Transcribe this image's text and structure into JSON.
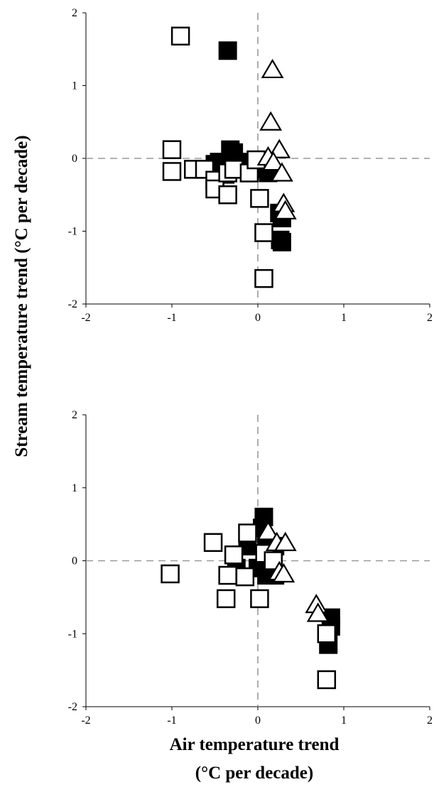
{
  "labels": {
    "y_title": "Stream temperature trend (°C per decade)",
    "x_title_line1": "Air temperature trend",
    "x_title_line2": "(°C per decade)"
  },
  "chart_data": [
    {
      "type": "scatter",
      "xlabel": "",
      "ylabel": "",
      "xlim": [
        -2,
        2
      ],
      "ylim": [
        -2,
        2
      ],
      "xticks": [
        "-2",
        "-1",
        "0",
        "1",
        "2"
      ],
      "yticks": [
        "-2",
        "-1",
        "0",
        "1",
        "2"
      ],
      "grid": false,
      "reference_lines": {
        "x": 0,
        "y": 0,
        "style": "dashed",
        "color": "#999999"
      },
      "series": [
        {
          "marker": "filled-square",
          "color": "#000000",
          "points": [
            [
              -0.35,
              1.48
            ],
            [
              -0.32,
              0.12
            ],
            [
              -0.28,
              0.08
            ],
            [
              -0.5,
              -0.08
            ],
            [
              -0.45,
              -0.05
            ],
            [
              -0.38,
              -0.22
            ],
            [
              -0.3,
              -0.12
            ],
            [
              -0.1,
              -0.05
            ],
            [
              -0.05,
              -0.12
            ],
            [
              0.1,
              -0.15
            ],
            [
              0.12,
              -0.2
            ],
            [
              0.25,
              -0.75
            ],
            [
              0.28,
              -0.82
            ],
            [
              0.26,
              -1.12
            ],
            [
              0.28,
              -1.15
            ]
          ]
        },
        {
          "marker": "open-square",
          "color": "#000000",
          "points": [
            [
              -0.9,
              1.68
            ],
            [
              -1.0,
              0.12
            ],
            [
              -1.0,
              -0.18
            ],
            [
              -0.75,
              -0.15
            ],
            [
              -0.62,
              -0.15
            ],
            [
              -0.5,
              -0.3
            ],
            [
              -0.5,
              -0.42
            ],
            [
              -0.35,
              -0.2
            ],
            [
              -0.35,
              -0.5
            ],
            [
              -0.28,
              -0.15
            ],
            [
              -0.1,
              -0.2
            ],
            [
              -0.02,
              -0.02
            ],
            [
              0.02,
              -0.55
            ],
            [
              0.07,
              -1.02
            ],
            [
              0.07,
              -1.65
            ]
          ]
        },
        {
          "marker": "open-triangle",
          "color": "#000000",
          "points": [
            [
              0.17,
              1.22
            ],
            [
              0.15,
              0.5
            ],
            [
              0.25,
              0.12
            ],
            [
              0.12,
              0.02
            ],
            [
              0.18,
              -0.05
            ],
            [
              0.28,
              -0.2
            ],
            [
              0.3,
              -0.62
            ],
            [
              0.32,
              -0.72
            ]
          ]
        }
      ]
    },
    {
      "type": "scatter",
      "xlabel": "",
      "ylabel": "",
      "xlim": [
        -2,
        2
      ],
      "ylim": [
        -2,
        2
      ],
      "xticks": [
        "-2",
        "-1",
        "0",
        "1",
        "2"
      ],
      "yticks": [
        "-2",
        "-1",
        "0",
        "1",
        "2"
      ],
      "grid": false,
      "reference_lines": {
        "x": 0,
        "y": 0,
        "style": "dashed",
        "color": "#999999"
      },
      "series": [
        {
          "marker": "filled-square",
          "color": "#000000",
          "points": [
            [
              0.07,
              0.6
            ],
            [
              0.05,
              0.45
            ],
            [
              0.1,
              0.25
            ],
            [
              -0.12,
              0.2
            ],
            [
              0.2,
              0.2
            ],
            [
              -0.25,
              -0.1
            ],
            [
              0.0,
              -0.1
            ],
            [
              0.1,
              -0.2
            ],
            [
              0.2,
              -0.2
            ],
            [
              0.85,
              -0.78
            ],
            [
              0.85,
              -0.9
            ],
            [
              0.82,
              -1.15
            ]
          ]
        },
        {
          "marker": "open-square",
          "color": "#000000",
          "points": [
            [
              -0.52,
              0.25
            ],
            [
              -0.28,
              0.08
            ],
            [
              -0.35,
              -0.2
            ],
            [
              -0.37,
              -0.52
            ],
            [
              -0.12,
              0.38
            ],
            [
              -0.15,
              -0.22
            ],
            [
              0.02,
              -0.52
            ],
            [
              0.08,
              0.1
            ],
            [
              0.18,
              0.0
            ],
            [
              0.8,
              -1.0
            ],
            [
              0.8,
              -1.63
            ],
            [
              -1.02,
              -0.18
            ]
          ]
        },
        {
          "marker": "open-triangle",
          "color": "#000000",
          "points": [
            [
              0.12,
              0.4
            ],
            [
              0.22,
              0.25
            ],
            [
              0.32,
              0.25
            ],
            [
              0.25,
              -0.15
            ],
            [
              0.3,
              -0.18
            ],
            [
              0.68,
              -0.6
            ],
            [
              0.7,
              -0.72
            ]
          ]
        }
      ]
    }
  ]
}
